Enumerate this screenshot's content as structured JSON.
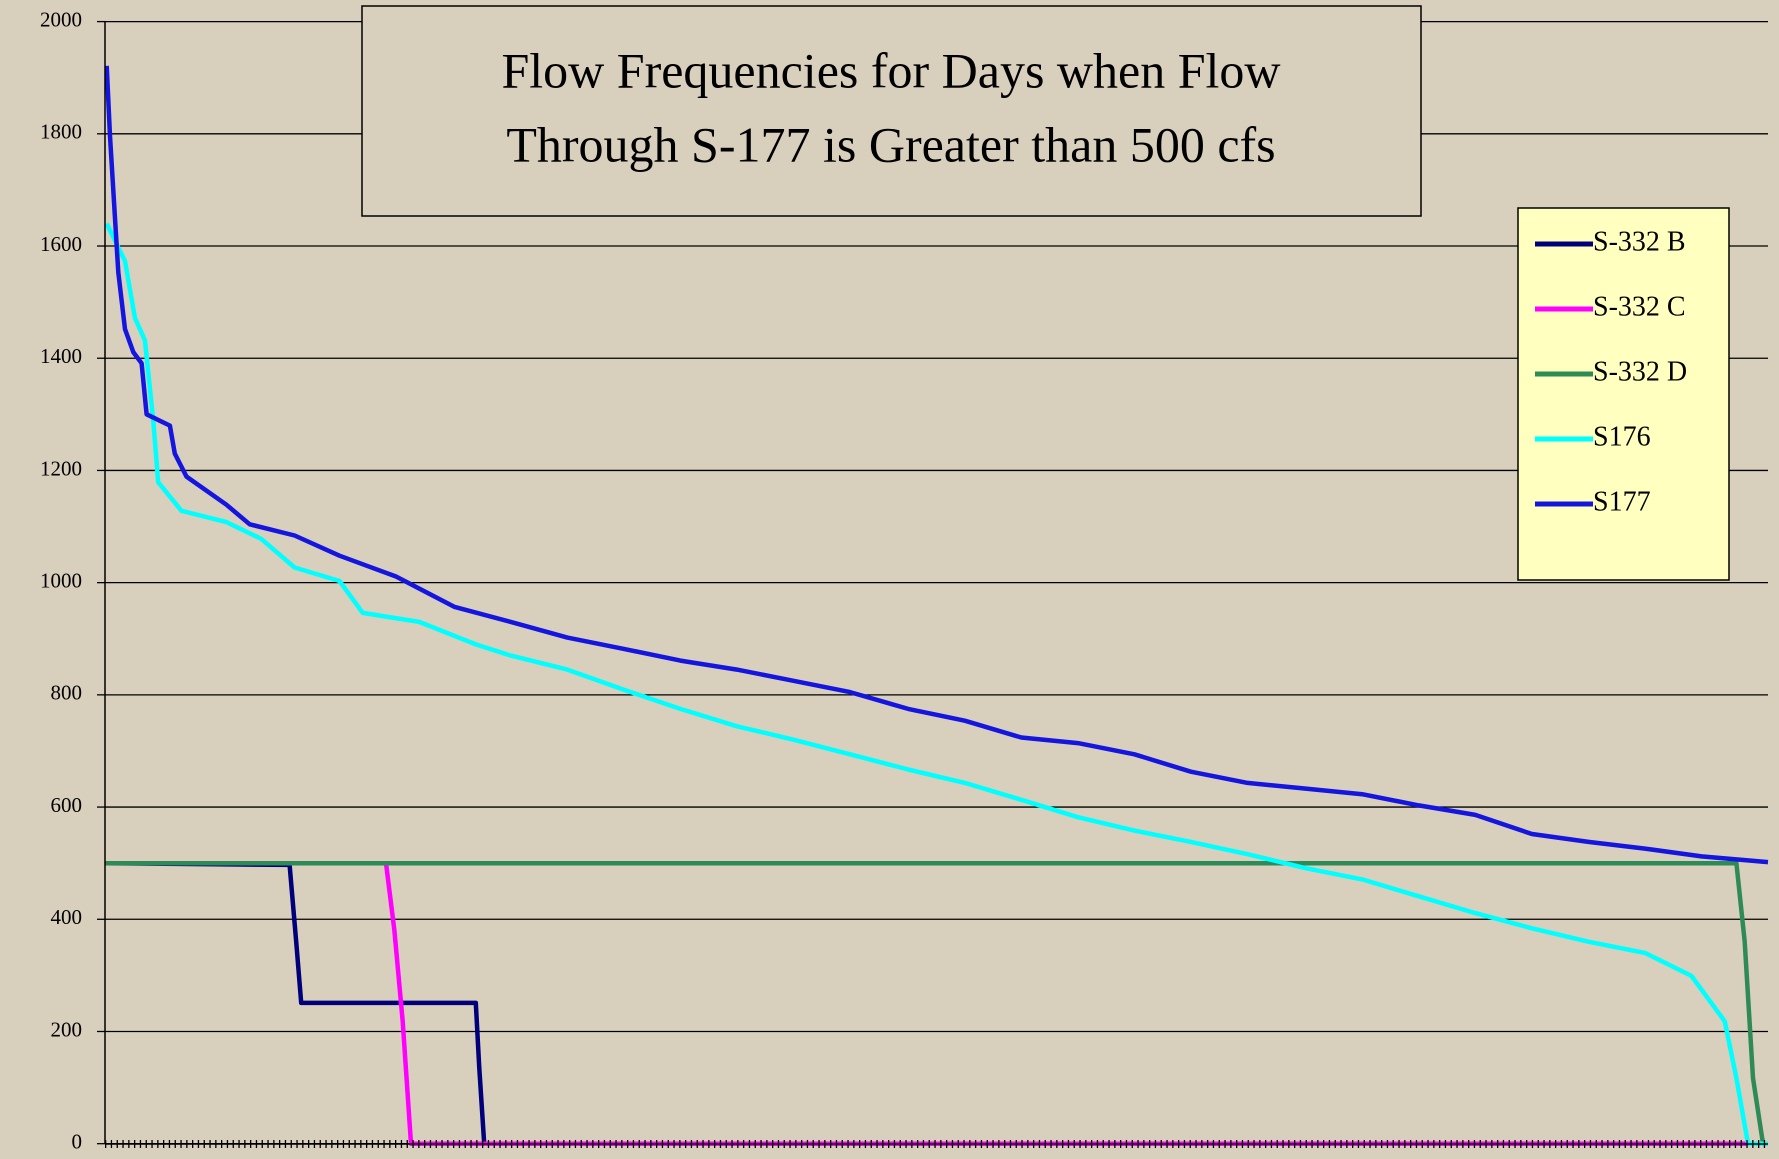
{
  "chart_data": {
    "type": "line",
    "title": [
      "Flow Frequencies for Days when Flow",
      "Through S-177 is Greater than 500 cfs"
    ],
    "ylim": [
      0,
      2000
    ],
    "yticks": [
      0,
      200,
      400,
      600,
      800,
      1000,
      1200,
      1400,
      1600,
      1800,
      2000
    ],
    "xlim": [
      0,
      100
    ],
    "grid": true,
    "legend": "right",
    "series": [
      {
        "name": "S-332 B",
        "color": "#00007a",
        "x": [
          0,
          11.1,
          11.5,
          11.8,
          22.3,
          22.5,
          22.8,
          100
        ],
        "values": [
          500,
          497,
          360,
          251,
          251,
          137,
          0,
          0
        ]
      },
      {
        "name": "S-332 C",
        "color": "#ff00ff",
        "x": [
          0,
          16.9,
          17.4,
          17.9,
          18.4,
          100
        ],
        "values": [
          500,
          500,
          380,
          218,
          0,
          0
        ]
      },
      {
        "name": "S-332 D",
        "color": "#2e8b57",
        "x": [
          0,
          98.1,
          98.6,
          99.1,
          99.7,
          100
        ],
        "values": [
          500,
          500,
          360,
          117,
          0,
          0
        ]
      },
      {
        "name": "S176",
        "color": "#00ffff",
        "x": [
          0.1,
          1.2,
          1.8,
          2.4,
          2.9,
          3.2,
          4.6,
          7.3,
          9.4,
          11.4,
          14.1,
          15.5,
          18.9,
          22.3,
          24.4,
          27.8,
          31.2,
          34.6,
          38,
          41.4,
          44.8,
          48.3,
          51.7,
          55.1,
          58.5,
          61.9,
          65.3,
          68.7,
          72.2,
          75.6,
          79,
          82.4,
          85.8,
          89.2,
          92.6,
          95.4,
          97.4,
          98.1,
          98.8,
          100
        ],
        "values": [
          1640,
          1573,
          1472,
          1432,
          1290,
          1179,
          1128,
          1108,
          1078,
          1027,
          1003,
          946,
          930,
          890,
          870,
          845,
          809,
          775,
          744,
          720,
          694,
          667,
          643,
          613,
          582,
          558,
          538,
          516,
          491,
          471,
          441,
          411,
          384,
          360,
          340,
          299,
          218,
          117,
          0,
          0
        ]
      },
      {
        "name": "S177",
        "color": "#1515e0",
        "x": [
          0.1,
          0.3,
          0.8,
          1.2,
          1.7,
          2.2,
          2.5,
          3.9,
          4.2,
          4.9,
          7.3,
          8.7,
          11.4,
          14.1,
          17.5,
          21,
          24.4,
          27.8,
          31.2,
          34.6,
          38,
          41.4,
          44.8,
          48.3,
          51.7,
          55.1,
          58.5,
          61.9,
          65.3,
          68.7,
          72.2,
          75.6,
          79,
          82.4,
          85.8,
          89.2,
          92.6,
          96,
          100
        ],
        "values": [
          1921,
          1796,
          1553,
          1452,
          1411,
          1391,
          1300,
          1280,
          1230,
          1189,
          1139,
          1104,
          1084,
          1048,
          1011,
          957,
          930,
          902,
          882,
          861,
          845,
          825,
          805,
          775,
          754,
          724,
          714,
          694,
          663,
          643,
          633,
          623,
          603,
          586,
          552,
          538,
          526,
          512,
          502
        ]
      }
    ]
  }
}
